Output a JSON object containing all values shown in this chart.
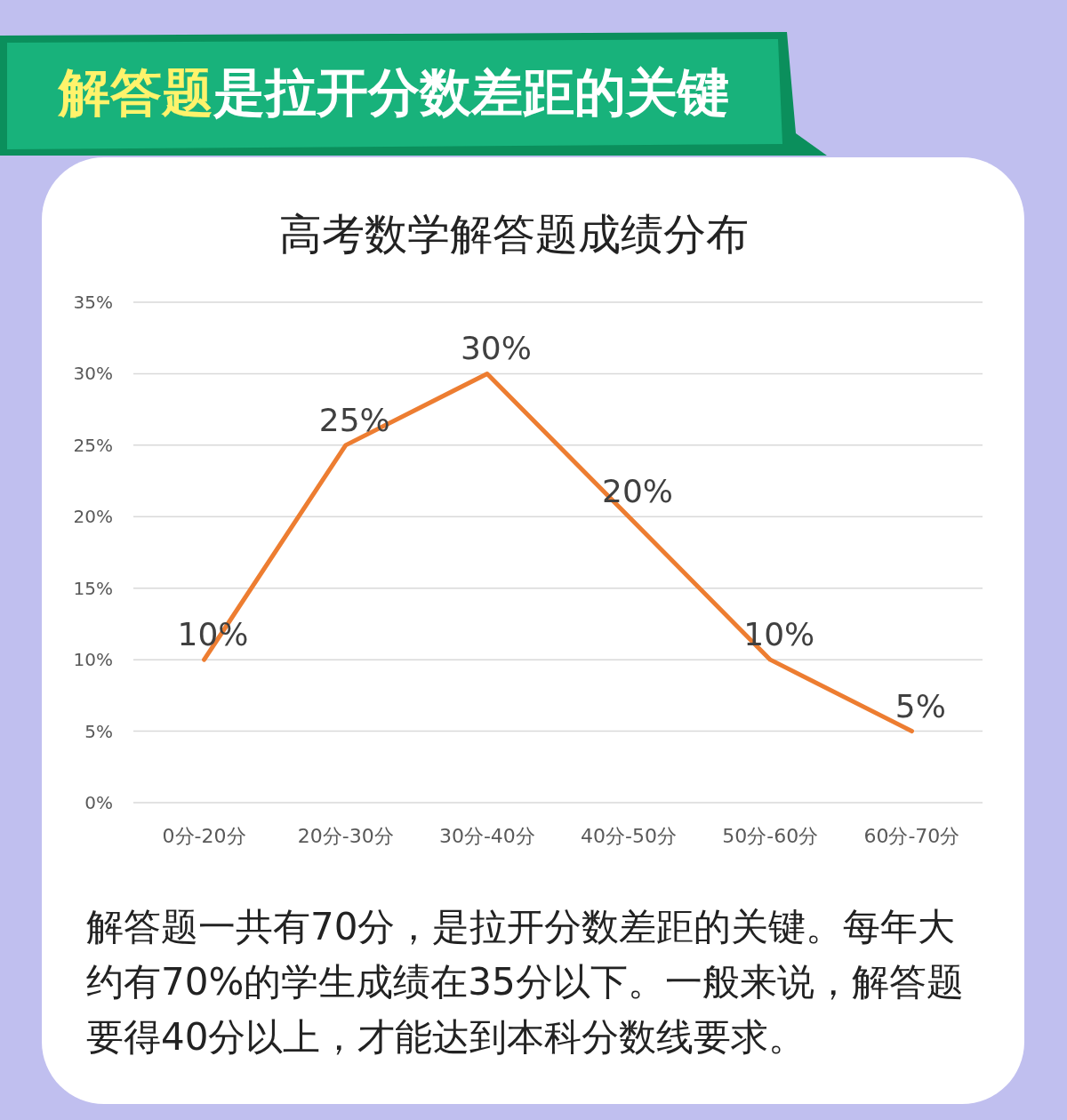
{
  "chart_data": {
    "type": "line",
    "title": "解答题是拉开分数差距的关键",
    "subtitle": "高考数学解答题成绩分布",
    "categories": [
      "0分-20分",
      "20分-30分",
      "30分-40分",
      "40分-50分",
      "50分-60分",
      "60分-70分"
    ],
    "series": [
      {
        "color": "#ed7d31",
        "values": [
          10,
          25,
          30,
          20,
          10,
          5
        ],
        "value_labels": [
          "10%",
          "25%",
          "30%",
          "20%",
          "10%",
          "5%"
        ]
      }
    ],
    "ylim": [
      0,
      35
    ],
    "yticks": [
      {
        "value": 0,
        "label": "0%"
      },
      {
        "value": 5,
        "label": "5%"
      },
      {
        "value": 10,
        "label": "10%"
      },
      {
        "value": 15,
        "label": "15%"
      },
      {
        "value": 20,
        "label": "20%"
      },
      {
        "value": 25,
        "label": "25%"
      },
      {
        "value": 30,
        "label": "30%"
      },
      {
        "value": 35,
        "label": "35%"
      }
    ],
    "grid": "y",
    "marker": "none",
    "line_style": "solid",
    "annotations": [
      "解答题一共有70分，是拉开分数差距的关键。每年大约有70%的学生成绩在35分以下。一般来说，解答题要得40分以上，才能达到本科分数线要求。"
    ]
  }
}
